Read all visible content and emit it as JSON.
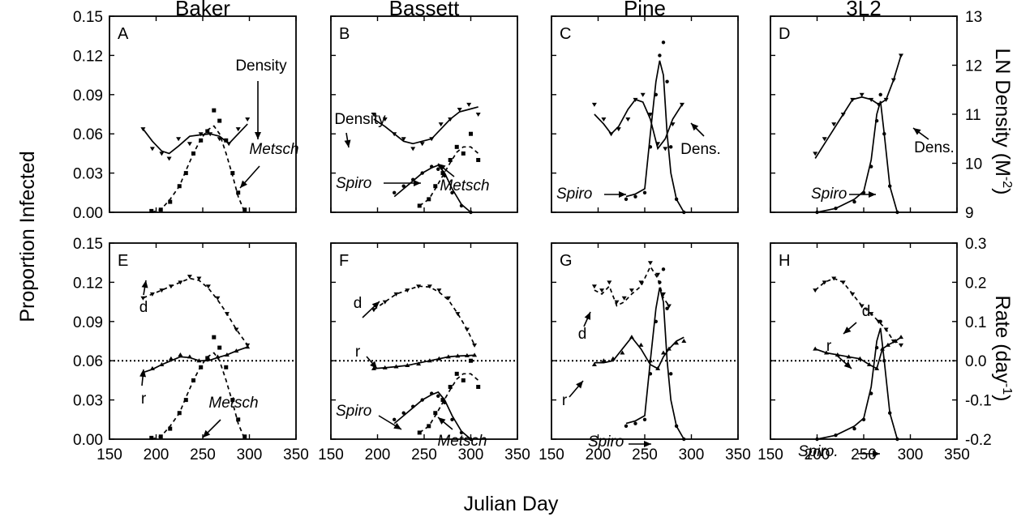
{
  "chart_data": {
    "type": "multi-panel line/scatter",
    "columns": [
      "Baker",
      "Bassett",
      "Pine",
      "3L2"
    ],
    "xlabel": "Julian Day",
    "ylabel_left": "Proportion Infected",
    "ylabel_right_top": "LN Density (M",
    "ylabel_right_top_sup": "-2",
    "ylabel_right_top_close": ")",
    "ylabel_right_bottom": "Rate (day",
    "ylabel_right_bottom_sup": "-1",
    "ylabel_right_bottom_close": ")",
    "xlim": [
      150,
      350
    ],
    "xticks": [
      "150",
      "200",
      "250",
      "300",
      "350"
    ],
    "ylim_left": [
      0,
      0.15
    ],
    "yticks_left": [
      "0.00",
      "0.03",
      "0.06",
      "0.09",
      "0.12",
      "0.15"
    ],
    "ylim_right_top": [
      9,
      13
    ],
    "yticks_right_top": [
      "9",
      "10",
      "11",
      "12",
      "13"
    ],
    "ylim_right_bottom": [
      -0.2,
      0.3
    ],
    "yticks_right_bottom": [
      "-0.2",
      "-0.1",
      "0.0",
      "0.1",
      "0.2",
      "0.3"
    ],
    "reference_line_rate": 0,
    "panels": [
      {
        "id": "A",
        "row": "top",
        "col": 0,
        "density": {
          "x": [
            186,
            196,
            206,
            214,
            224,
            236,
            248,
            258,
            268,
            278,
            288,
            298
          ],
          "y": [
            10.7,
            10.3,
            10.2,
            10.1,
            10.5,
            10.4,
            10.6,
            10.6,
            10.5,
            10.4,
            10.7,
            10.9
          ],
          "fit": [
            10.7,
            10.45,
            10.25,
            10.2,
            10.35,
            10.55,
            10.58,
            10.6,
            10.55,
            10.4,
            10.6,
            10.8
          ]
        },
        "metsch": {
          "x": [
            195,
            205,
            215,
            225,
            232,
            240,
            248,
            255,
            262,
            268,
            275,
            282,
            288,
            295
          ],
          "y": [
            0.001,
            0.002,
            0.008,
            0.02,
            0.03,
            0.045,
            0.055,
            0.062,
            0.078,
            0.07,
            0.055,
            0.03,
            0.015,
            0.002
          ],
          "fit": [
            0,
            0.002,
            0.01,
            0.02,
            0.032,
            0.045,
            0.056,
            0.063,
            0.066,
            0.06,
            0.045,
            0.028,
            0.012,
            0
          ]
        },
        "labels": [
          "Density",
          "Metsch"
        ]
      },
      {
        "id": "B",
        "row": "top",
        "col": 1,
        "density": {
          "x": [
            196,
            208,
            218,
            228,
            238,
            248,
            258,
            268,
            278,
            288,
            298,
            308
          ],
          "y": [
            11.0,
            10.9,
            10.6,
            10.5,
            10.3,
            10.4,
            10.5,
            10.8,
            10.9,
            11.1,
            11.2,
            11.0
          ],
          "fit": [
            10.9,
            10.75,
            10.6,
            10.45,
            10.4,
            10.45,
            10.5,
            10.7,
            10.9,
            11.05,
            11.1,
            11.15
          ]
        },
        "spiro": {
          "x": [
            218,
            228,
            238,
            248,
            258,
            265,
            272,
            280,
            290,
            300
          ],
          "y": [
            0.015,
            0.02,
            0.025,
            0.03,
            0.035,
            0.033,
            0.028,
            0.015,
            0.005,
            0.0
          ],
          "fit": [
            0.012,
            0.018,
            0.024,
            0.03,
            0.034,
            0.036,
            0.03,
            0.018,
            0.006,
            0.0
          ]
        },
        "metsch": {
          "x": [
            245,
            255,
            262,
            270,
            278,
            285,
            292,
            300,
            308
          ],
          "y": [
            0.005,
            0.01,
            0.02,
            0.03,
            0.04,
            0.05,
            0.045,
            0.06,
            0.04
          ],
          "fit": [
            0.005,
            0.01,
            0.018,
            0.028,
            0.038,
            0.046,
            0.05,
            0.05,
            0.045
          ]
        },
        "labels": [
          "Density",
          "Spiro",
          "Metsch"
        ]
      },
      {
        "id": "C",
        "row": "top",
        "col": 2,
        "density": {
          "x": [
            196,
            206,
            214,
            222,
            232,
            240,
            248,
            256,
            264,
            272,
            280,
            290
          ],
          "y": [
            11.2,
            10.9,
            10.6,
            10.7,
            10.9,
            11.3,
            11.4,
            11.0,
            10.4,
            10.3,
            10.8,
            11.2
          ],
          "fit": [
            11.0,
            10.8,
            10.6,
            10.75,
            11.1,
            11.3,
            11.25,
            10.9,
            10.3,
            10.5,
            10.9,
            11.2
          ]
        },
        "spiro": {
          "x": [
            230,
            240,
            250,
            256,
            262,
            266,
            270,
            274,
            278,
            284,
            292
          ],
          "y": [
            0.01,
            0.012,
            0.015,
            0.05,
            0.09,
            0.12,
            0.13,
            0.1,
            0.05,
            0.01,
            0.0
          ],
          "fit": [
            0.012,
            0.014,
            0.018,
            0.06,
            0.1,
            0.116,
            0.105,
            0.06,
            0.03,
            0.01,
            0.0
          ]
        },
        "labels": [
          "Spiro",
          "Dens."
        ]
      },
      {
        "id": "D",
        "row": "top",
        "col": 3,
        "density": {
          "x": [
            198,
            208,
            218,
            228,
            238,
            248,
            258,
            266,
            274,
            282,
            290
          ],
          "y": [
            10.2,
            10.5,
            10.8,
            11.0,
            11.3,
            11.4,
            11.3,
            11.2,
            11.3,
            11.7,
            12.2
          ],
          "fit": [
            10.1,
            10.4,
            10.7,
            11.0,
            11.3,
            11.35,
            11.3,
            11.2,
            11.3,
            11.7,
            12.2
          ]
        },
        "spiro": {
          "x": [
            200,
            220,
            240,
            250,
            258,
            264,
            268,
            272,
            278,
            286
          ],
          "y": [
            0.0,
            0.003,
            0.008,
            0.015,
            0.035,
            0.07,
            0.09,
            0.06,
            0.02,
            0.0
          ],
          "fit": [
            0.0,
            0.003,
            0.01,
            0.016,
            0.04,
            0.075,
            0.085,
            0.06,
            0.02,
            0.0
          ]
        },
        "labels": [
          "Spiro",
          "Dens."
        ]
      },
      {
        "id": "E",
        "row": "bottom",
        "col": 0,
        "d": {
          "x": [
            186,
            196,
            206,
            216,
            226,
            236,
            246,
            256,
            266,
            276,
            286,
            298
          ],
          "y": [
            0.16,
            0.17,
            0.18,
            0.19,
            0.2,
            0.215,
            0.21,
            0.19,
            0.16,
            0.12,
            0.08,
            0.04
          ],
          "fit": [
            0.16,
            0.17,
            0.18,
            0.19,
            0.2,
            0.21,
            0.205,
            0.185,
            0.155,
            0.12,
            0.08,
            0.04
          ]
        },
        "r": {
          "x": [
            186,
            196,
            206,
            216,
            226,
            236,
            246,
            256,
            266,
            276,
            286,
            298
          ],
          "y": [
            -0.03,
            -0.02,
            -0.01,
            0.005,
            0.015,
            0.01,
            0.0,
            0.005,
            0.01,
            0.015,
            0.025,
            0.035
          ],
          "fit": [
            -0.03,
            -0.022,
            -0.01,
            0.0,
            0.01,
            0.008,
            0.0,
            0.0,
            0.008,
            0.015,
            0.025,
            0.035
          ]
        },
        "metsch": {
          "x": [
            195,
            205,
            215,
            225,
            232,
            240,
            248,
            255,
            262,
            268,
            275,
            282,
            288,
            295
          ],
          "y": [
            0.001,
            0.002,
            0.008,
            0.02,
            0.03,
            0.045,
            0.055,
            0.062,
            0.078,
            0.07,
            0.055,
            0.03,
            0.015,
            0.002
          ],
          "fit": [
            0,
            0.002,
            0.01,
            0.02,
            0.032,
            0.045,
            0.056,
            0.063,
            0.066,
            0.06,
            0.045,
            0.028,
            0.012,
            0
          ]
        },
        "labels": [
          "d",
          "r",
          "Metsch"
        ]
      },
      {
        "id": "F",
        "row": "bottom",
        "col": 1,
        "d": {
          "x": [
            196,
            208,
            220,
            232,
            244,
            256,
            266,
            276,
            286,
            296,
            304
          ],
          "y": [
            0.13,
            0.15,
            0.17,
            0.18,
            0.19,
            0.19,
            0.18,
            0.16,
            0.12,
            0.08,
            0.04
          ],
          "fit": [
            0.13,
            0.15,
            0.17,
            0.18,
            0.19,
            0.188,
            0.175,
            0.155,
            0.12,
            0.08,
            0.04
          ]
        },
        "r": {
          "x": [
            196,
            208,
            220,
            232,
            244,
            256,
            266,
            276,
            286,
            296,
            304
          ],
          "y": [
            -0.02,
            -0.018,
            -0.015,
            -0.012,
            -0.008,
            0.0,
            0.005,
            0.01,
            0.012,
            0.013,
            0.014
          ],
          "fit": [
            -0.02,
            -0.018,
            -0.015,
            -0.012,
            -0.006,
            0.0,
            0.005,
            0.01,
            0.012,
            0.013,
            0.014
          ]
        },
        "spiro": {
          "x": [
            218,
            228,
            238,
            248,
            258,
            265,
            272,
            280,
            290,
            300
          ],
          "y": [
            0.015,
            0.02,
            0.025,
            0.03,
            0.035,
            0.033,
            0.028,
            0.015,
            0.005,
            0.0
          ],
          "fit": [
            0.012,
            0.018,
            0.024,
            0.03,
            0.034,
            0.036,
            0.03,
            0.018,
            0.006,
            0.0
          ]
        },
        "metsch": {
          "x": [
            245,
            255,
            262,
            270,
            278,
            285,
            292,
            300,
            308
          ],
          "y": [
            0.005,
            0.01,
            0.02,
            0.03,
            0.04,
            0.05,
            0.045,
            0.06,
            0.04
          ],
          "fit": [
            0.005,
            0.01,
            0.018,
            0.028,
            0.038,
            0.046,
            0.05,
            0.05,
            0.045
          ]
        },
        "labels": [
          "d",
          "r",
          "Spiro",
          "Metsch"
        ]
      },
      {
        "id": "G",
        "row": "bottom",
        "col": 2,
        "d": {
          "x": [
            196,
            204,
            212,
            220,
            228,
            236,
            246,
            256,
            264,
            270,
            276
          ],
          "y": [
            0.19,
            0.18,
            0.2,
            0.15,
            0.16,
            0.18,
            0.2,
            0.25,
            0.22,
            0.17,
            0.14
          ],
          "fit": [
            0.18,
            0.17,
            0.19,
            0.14,
            0.15,
            0.17,
            0.19,
            0.24,
            0.21,
            0.16,
            0.14
          ]
        },
        "r": {
          "x": [
            196,
            206,
            216,
            226,
            236,
            246,
            256,
            264,
            270,
            276,
            284,
            292
          ],
          "y": [
            -0.01,
            0.0,
            0.005,
            0.02,
            0.06,
            0.04,
            0.0,
            -0.02,
            0.02,
            0.03,
            0.045,
            0.05
          ],
          "fit": [
            -0.005,
            -0.005,
            0.0,
            0.03,
            0.06,
            0.03,
            -0.01,
            -0.02,
            0.01,
            0.03,
            0.05,
            0.06
          ]
        },
        "spiro": {
          "x": [
            230,
            240,
            250,
            256,
            262,
            266,
            270,
            274,
            278,
            284,
            292
          ],
          "y": [
            0.01,
            0.012,
            0.015,
            0.05,
            0.09,
            0.12,
            0.13,
            0.1,
            0.05,
            0.01,
            0.0
          ],
          "fit": [
            0.012,
            0.014,
            0.018,
            0.06,
            0.1,
            0.116,
            0.105,
            0.06,
            0.03,
            0.01,
            0.0
          ]
        },
        "labels": [
          "d",
          "r",
          "Spiro"
        ]
      },
      {
        "id": "H",
        "row": "bottom",
        "col": 3,
        "d": {
          "x": [
            198,
            208,
            218,
            228,
            238,
            248,
            258,
            266,
            274,
            282,
            290
          ],
          "y": [
            0.18,
            0.2,
            0.21,
            0.2,
            0.17,
            0.14,
            0.12,
            0.1,
            0.08,
            0.05,
            0.04
          ],
          "fit": [
            0.18,
            0.2,
            0.21,
            0.2,
            0.17,
            0.14,
            0.12,
            0.1,
            0.08,
            0.05,
            0.04
          ]
        },
        "r": {
          "x": [
            198,
            210,
            222,
            234,
            246,
            256,
            264,
            270,
            276,
            284,
            290
          ],
          "y": [
            0.03,
            0.02,
            0.015,
            0.01,
            0.005,
            -0.01,
            -0.02,
            0.03,
            0.04,
            0.05,
            0.06
          ],
          "fit": [
            0.03,
            0.02,
            0.015,
            0.01,
            0.005,
            -0.01,
            -0.02,
            0.03,
            0.04,
            0.05,
            0.06
          ]
        },
        "spiro": {
          "x": [
            200,
            220,
            240,
            250,
            258,
            264,
            268,
            272,
            278,
            286
          ],
          "y": [
            0.0,
            0.003,
            0.008,
            0.015,
            0.035,
            0.07,
            0.09,
            0.06,
            0.02,
            0.0
          ],
          "fit": [
            0.0,
            0.003,
            0.01,
            0.016,
            0.04,
            0.075,
            0.085,
            0.06,
            0.02,
            0.0
          ]
        },
        "labels": [
          "d",
          "r",
          "Spiro."
        ]
      }
    ]
  }
}
